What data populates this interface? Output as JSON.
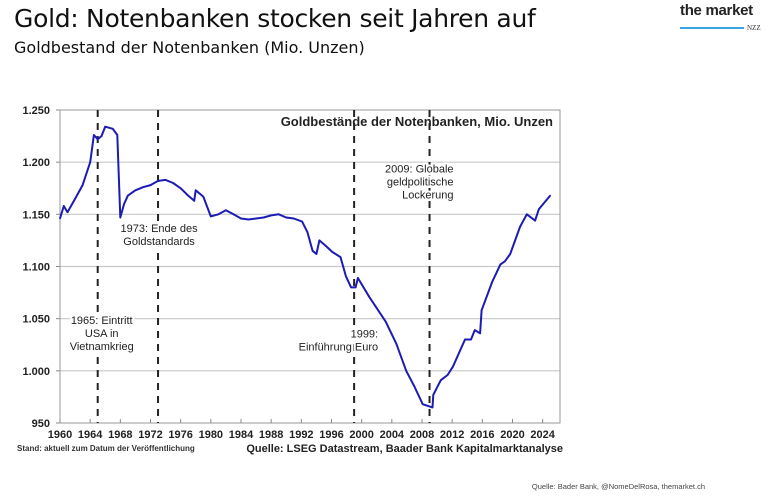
{
  "header": {
    "title": "Gold: Notenbanken stocken seit Jahren auf",
    "subtitle": "Goldbestand der Notenbanken (Mio. Unzen)",
    "logo_text": "the market",
    "logo_sub": "NZZ"
  },
  "footer": {
    "source": "Quelle: Bader Bank, @NomeDelRosa, themarket.ch"
  },
  "colors": {
    "line": "#1c1cb4",
    "grid": "#c8c8c8",
    "accent": "#3aa3e3"
  },
  "chart_data": {
    "type": "line",
    "title": "Goldbestände der Notenbanken, Mio. Unzen",
    "xlabel": "",
    "ylabel": "",
    "xlim": [
      1960,
      2026.3
    ],
    "ylim": [
      950,
      1250
    ],
    "grid": true,
    "y_ticks": [
      "950",
      "1.000",
      "1.050",
      "1.100",
      "1.150",
      "1.200",
      "1.250"
    ],
    "y_tick_values": [
      950,
      1000,
      1050,
      1100,
      1150,
      1200,
      1250
    ],
    "x_ticks": [
      "1960",
      "1964",
      "1968",
      "1972",
      "1976",
      "1980",
      "1984",
      "1988",
      "1992",
      "1996",
      "2000",
      "2004",
      "2008",
      "2012",
      "2016",
      "2020",
      "2024"
    ],
    "note_left": "Stand: aktuell zum Datum der Veröffentlichung",
    "note_right": "Quelle: LSEG Datastream, Baader Bank Kapitalmarktanalyse",
    "annotations": [
      {
        "year": 1965,
        "lines": [
          "1965: Eintritt",
          "USA in",
          "Vietnamkrieg"
        ],
        "value_anchor": 1045,
        "align": "middle"
      },
      {
        "year": 1973,
        "lines": [
          "1973: Ende des",
          "Goldstandards"
        ],
        "value_anchor": 1133,
        "align": "middle"
      },
      {
        "year": 1999,
        "lines": [
          "1999:",
          "Einführung Euro"
        ],
        "value_anchor": 1032,
        "align": "end"
      },
      {
        "year": 2009,
        "lines": [
          "2009: Globale",
          "geldpolitische",
          "Lockerung"
        ],
        "value_anchor": 1190,
        "align": "end"
      }
    ],
    "series": [
      {
        "name": "Goldbestand",
        "x": [
          1960,
          1960.5,
          1961,
          1962,
          1963,
          1964,
          1964.5,
          1965,
          1965.5,
          1966,
          1967,
          1967.6,
          1968,
          1968.5,
          1969,
          1970,
          1971,
          1972,
          1973,
          1974,
          1975,
          1976,
          1977,
          1977.8,
          1978,
          1979,
          1980,
          1981,
          1982,
          1983,
          1984,
          1985,
          1986,
          1987,
          1988,
          1989,
          1990,
          1991,
          1992.1,
          1992.8,
          1993.5,
          1994,
          1994.4,
          1995.2,
          1996.1,
          1997.2,
          1997.9,
          1998.6,
          1999.2,
          1999.5,
          2001,
          2003.2,
          2004.6,
          2005.9,
          2007,
          2008.1,
          2009.4,
          2009.5,
          2010.5,
          2011.4,
          2012.1,
          2013.7,
          2014.5,
          2015,
          2015.7,
          2015.9,
          2017.3,
          2018.4,
          2019,
          2019.7,
          2021,
          2021.9,
          2023,
          2023.5,
          2025
        ],
        "values": [
          1146,
          1158,
          1152,
          1165,
          1178,
          1200,
          1226,
          1222,
          1225,
          1234,
          1232,
          1226,
          1147,
          1160,
          1168,
          1173,
          1176,
          1178,
          1182,
          1183,
          1180,
          1175,
          1168,
          1163,
          1173,
          1167,
          1148,
          1150,
          1154,
          1150,
          1146,
          1145,
          1146,
          1147,
          1149,
          1150,
          1147,
          1146,
          1143,
          1133,
          1115,
          1112,
          1125,
          1120,
          1114,
          1109,
          1091,
          1080,
          1080,
          1089,
          1071,
          1047,
          1026,
          1000,
          985,
          968,
          965,
          977,
          991,
          996,
          1004,
          1030,
          1030,
          1039,
          1036,
          1058,
          1085,
          1102,
          1105,
          1112,
          1138,
          1150,
          1144,
          1155,
          1168
        ]
      }
    ],
    "event_lines": [
      1965,
      1973,
      1999,
      2009
    ]
  }
}
